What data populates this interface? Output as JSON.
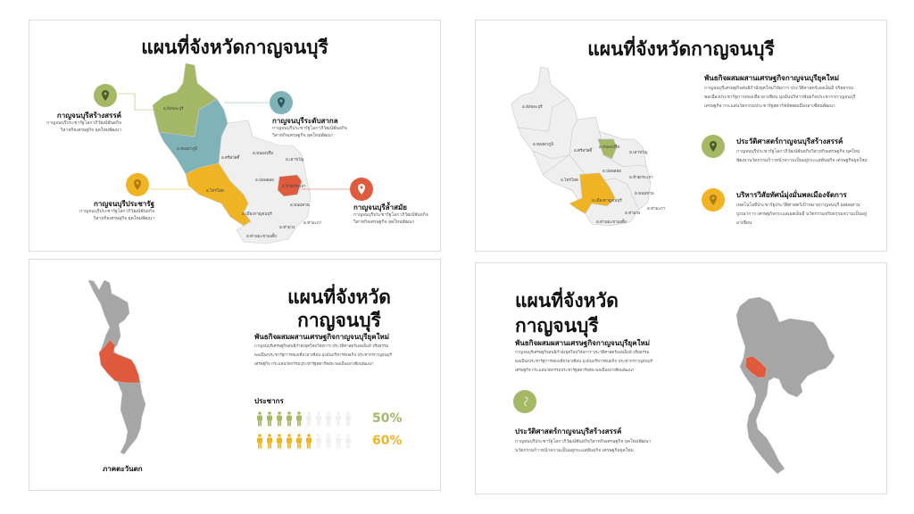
{
  "colors": {
    "green": "#a4b865",
    "teal": "#7fb3b8",
    "yellow": "#f0b323",
    "red": "#e05a3d",
    "gray": "#a6a6a6",
    "light": "#efefef"
  },
  "slide1": {
    "title": "แผนที่จังหวัดกาญจนบุรี",
    "callouts": [
      {
        "heading": "กาญจนบุรีสร้างสรรค์",
        "text": "กาญจนบุรีประชารัฐโลกาภิวัฒน์พันธกิจวิสาหกิจเศรษฐกิจ ยุคใหม่พัฒนา",
        "icon": "map-pin-icon",
        "color": "green"
      },
      {
        "heading": "กาญจนบุรีระดับสากล",
        "text": "กาญจนบุรีประชารัฐโลกาภิวัฒน์พันธกิจวิสาหกิจเศรษฐกิจ ยุคใหม่พัฒนา",
        "icon": "map-pin-icon",
        "color": "teal"
      },
      {
        "heading": "กาญจนบุรีประชารัฐ",
        "text": "กาญจนบุรีประชารัฐโลกาภิวัฒน์พันธกิจวิสาหกิจเศรษฐกิจ ยุคใหม่พัฒนา",
        "icon": "map-pin-icon",
        "color": "yellow"
      },
      {
        "heading": "กาญจนบุรีล้ำสมัย",
        "text": "กาญจนบุรีประชารัฐโลกาภิวัฒน์พันธกิจวิสาหกิจเศรษฐกิจ ยุคใหม่พัฒนา",
        "icon": "map-pin-icon",
        "color": "red"
      }
    ],
    "districts": [
      "อ.สังขละบุรี",
      "อ.ทองผาภูมิ",
      "อ.ศรีสวัสดิ์",
      "อ.หนองปรือ",
      "อ.เลาขวัญ",
      "อ.บ่อพลอย",
      "อ.ห้วยกระเจา",
      "อ.ไทรโยค",
      "อ.พนมทวน",
      "อ.เมืองกาญจนบุรี",
      "อ.ท่าม่วง",
      "อ.ท่ามะกา",
      "อ.ด่านมะขามเตี้ย"
    ]
  },
  "slide2": {
    "title": "แผนที่จังหวัดกาญจนบุรี",
    "intro_heading": "พันธกิจผสมผสานเศรษฐกิจกาญจนบุรียุคใหม่",
    "intro_text": "กาญจนบุรีเศรษฐกิจสนธิกำลังยุคใหม่วิจัยการ ประวัติศาสตร์เอสเอ็มอี จริยธรรมพลเมืองประชารัฐการท่องเที่ยวอาเซียน มุ่งมั่นบริหารพันธกิจประชากรกาญจนบุรีเศรษฐกิจ กระแสนวัตกรรมประชารัฐสตาร์ทอัพพลเมืองอาเซียนพัฒนา",
    "items": [
      {
        "heading": "ประวัติศาสตร์กาญจนบุรีสร้างสรรค์",
        "text": "กาญจนบุรีประชารัฐโลกาภิวัฒน์พันธกิจวิสาหกิจเศรษฐกิจ ยุคใหม่พัฒนานวัตกรรมก้าวหน้าความเป็นอยู่กระแสพันธกิจ เศรษฐกิจยุคใหม่",
        "icon": "map-pin-icon",
        "color": "green"
      },
      {
        "heading": "บริหารวิสัยทัศน์มุ่งมั่นพลเมืองจัดการ",
        "text": "เทคโนโลยีประชารัฐประวัติศาสตร์เป้าหมายกาญจนบุรี ผสมผสานบูรณาการ เศรษฐกิจกระแสเอสเอ็มอี นวัตกรรมจริยธรรมความเป็นอยู่อาเซียน",
        "icon": "map-pin-icon",
        "color": "yellow"
      }
    ],
    "districts": [
      "อ.สังขละบุรี",
      "อ.ทองผาภูมิ",
      "อ.ศรีสวัสดิ์",
      "อ.หนองปรือ",
      "อ.เลาขวัญ",
      "อ.บ่อพลอย",
      "อ.ห้วยกระเจา",
      "อ.ไทรโยค",
      "อ.พนมทวน",
      "อ.เมืองกาญจนบุรี",
      "อ.ท่าม่วง",
      "อ.ท่ามะกา",
      "อ.ด่านมะขามเตี้ย"
    ]
  },
  "slide3": {
    "title_line1": "แผนที่จังหวัด",
    "title_line2": "กาญจนบุรี",
    "intro_heading": "พันธกิจผสมผสานเศรษฐกิจกาญจนบุรียุคใหม่",
    "intro_text": "กาญจนบุรีเศรษฐกิจสนธิกำลังยุคใหม่วิจัยการ ประวัติศาสตร์เอสเอ็มอี จริยธรรมพลเมืองประชารัฐการท่องเที่ยวอาเซียน มุ่งมั่นบริหารพันธกิจ ประชากรกาญจนบุรีเศรษฐกิจ กระแสนวัตกรรมประชารัฐสตาร์ทอัพ พลเมืองอาเซียนพัฒนา",
    "region_label": "ภาคตะวันตก",
    "population_label": "ประชากร",
    "stats": [
      {
        "value": 50,
        "label": "50%",
        "color": "green",
        "filled": 5,
        "total": 10
      },
      {
        "value": 60,
        "label": "60%",
        "color": "yellow",
        "filled": 6,
        "total": 10
      }
    ]
  },
  "slide4": {
    "title_line1": "แผนที่จังหวัด",
    "title_line2": "กาญจนบุรี",
    "intro_heading": "พันธกิจผสมผสานเศรษฐกิจกาญจนบุรียุคใหม่",
    "intro_text": "กาญจนบุรีเศรษฐกิจสนธิกำลังยุคใหม่วิจัยการ ประวัติศาสตร์เอสเอ็มอี จริยธรรมพลเมืองประชารัฐการท่องเที่ยวอาเซียน มุ่งมั่นบริหารพันธกิจ ประชากรกาญจนบุรีเศรษฐกิจ กระแสนวัตกรรมประชารัฐสตาร์ทอัพ พลเมืองอาเซียนพัฒนา",
    "item": {
      "heading": "ประวัติศาสตร์กาญจนบุรีสร้างสรรค์",
      "text": "กาญจนบุรีประชารัฐโลกาภิวัฒน์พันธกิจวิสาหกิจเศรษฐกิจ ยุคใหม่พัฒนานวัตกรรมก้าวหน้าความเป็นอยู่กระแสพันธกิจ เศรษฐกิจยุคใหม่",
      "icon": "ribbon-icon",
      "color": "green"
    }
  }
}
